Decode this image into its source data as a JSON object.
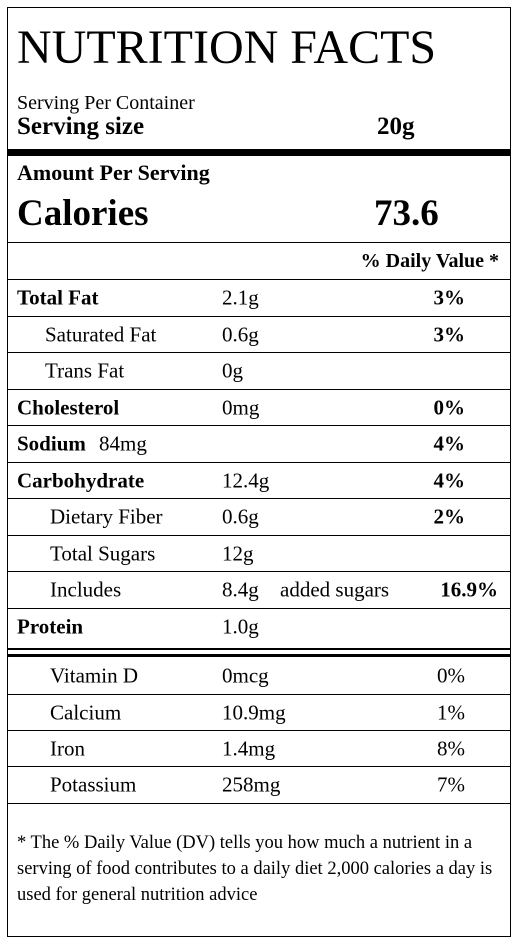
{
  "title": "NUTRITION FACTS",
  "servings": "Serving Per Container",
  "serving_size": {
    "label": "Serving size",
    "value": "20g"
  },
  "amount_per_serving": "Amount Per Serving",
  "calories": {
    "label": "Calories",
    "value": "73.6"
  },
  "daily_value_header": "% Daily Value *",
  "nutrients": [
    {
      "label": "Total Fat",
      "amount": "2.1g",
      "dv": "3%"
    },
    {
      "label": "Saturated Fat",
      "amount": "0.6g",
      "dv": "3%"
    },
    {
      "label": "Trans Fat",
      "amount": "0g"
    },
    {
      "label": "Cholesterol",
      "amount": "0mg",
      "dv": "0%"
    },
    {
      "label": "Sodium",
      "inline_amount": "84mg",
      "dv": "4%"
    },
    {
      "label": "Carbohydrate",
      "amount": "12.4g",
      "dv": "4%"
    },
    {
      "label": "Dietary Fiber",
      "amount": "0.6g",
      "dv": "2%"
    },
    {
      "label": "Total Sugars",
      "amount": "12g"
    },
    {
      "label": "Includes",
      "amount": "8.4g",
      "note": "added sugars",
      "dv": "16.9%"
    },
    {
      "label": "Protein",
      "amount": "1.0g"
    }
  ],
  "vitamins": [
    {
      "label": "Vitamin D",
      "amount": "0mcg",
      "dv": "0%"
    },
    {
      "label": "Calcium",
      "amount": "10.9mg",
      "dv": "1%"
    },
    {
      "label": "Iron",
      "amount": "1.4mg",
      "dv": "8%"
    },
    {
      "label": "Potassium",
      "amount": "258mg",
      "dv": "7%"
    }
  ],
  "footnote": "* The % Daily Value (DV) tells you how much a nutrient in a serving of food contributes to a daily diet 2,000 calories a day is used for general nutrition advice"
}
